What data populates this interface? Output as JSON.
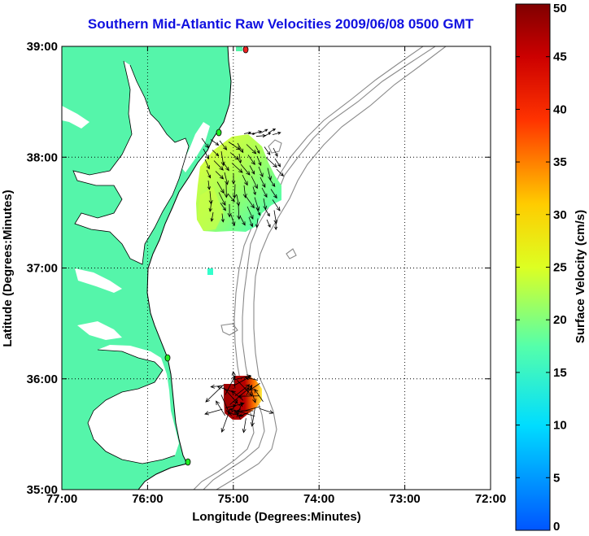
{
  "title": "Southern Mid-Atlantic Raw Velocities 2009/06/08 0500 GMT",
  "xlabel": "Longitude (Degrees:Minutes)",
  "ylabel": "Latitude (Degrees:Minutes)",
  "x_ticks": [
    "77:00",
    "76:00",
    "75:00",
    "74:00",
    "73:00",
    "72:00"
  ],
  "y_ticks": [
    "39:00",
    "38:00",
    "37:00",
    "36:00",
    "35:00"
  ],
  "colorbar": {
    "label": "Surface Velocity (cm/s)",
    "ticks": [
      "50",
      "45",
      "40",
      "35",
      "30",
      "25",
      "20",
      "15",
      "10",
      "5",
      "0"
    ],
    "min": 0,
    "max": 50
  },
  "colors": {
    "title": "#1010e0",
    "land": "#55f5aa",
    "bathymetry": "#8a8a8a",
    "station_marker": "#22ee22"
  }
}
